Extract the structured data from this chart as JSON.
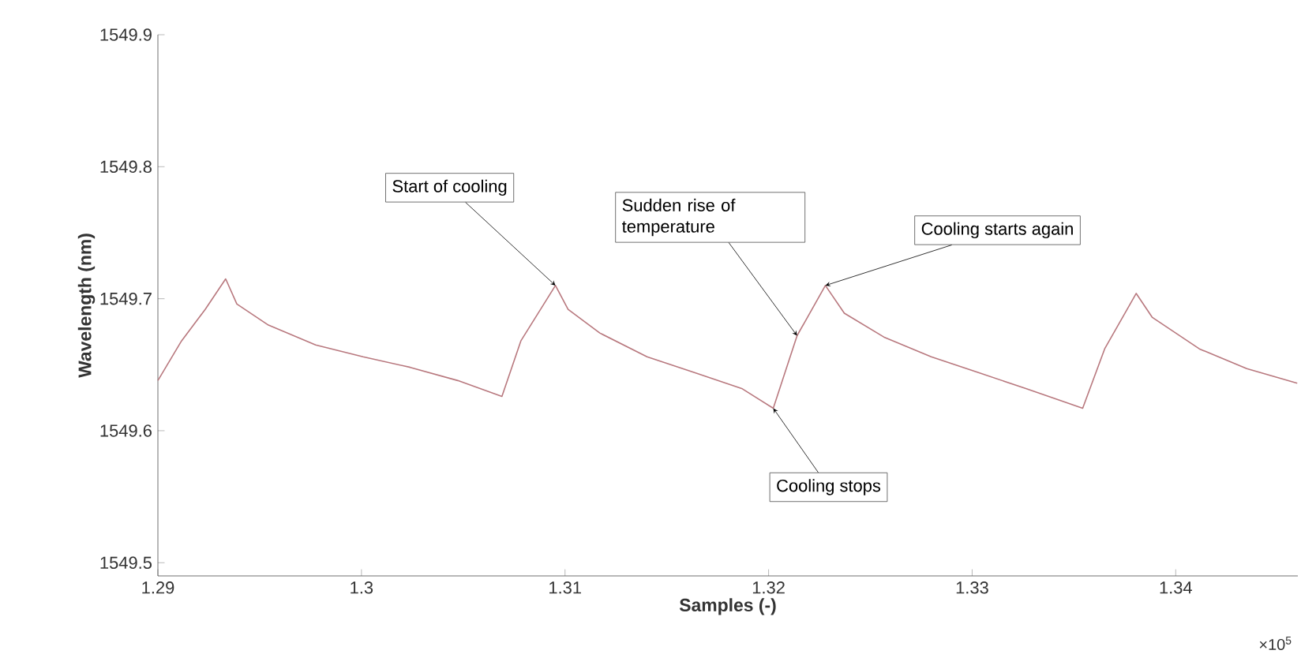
{
  "chart_data": {
    "type": "line",
    "xlabel": "Samples (-)",
    "ylabel": "Wavelength (nm)",
    "x": [
      1.29,
      1.29116,
      1.29233,
      1.29333,
      1.29388,
      1.29543,
      1.29775,
      1.30008,
      1.3024,
      1.30473,
      1.3069,
      1.30783,
      1.30953,
      1.31015,
      1.31171,
      1.31403,
      1.31636,
      1.31868,
      1.32023,
      1.3214,
      1.32279,
      1.32372,
      1.32566,
      1.32799,
      1.33031,
      1.33264,
      1.33543,
      1.33651,
      1.33806,
      1.33884,
      1.34116,
      1.34349,
      1.34597
    ],
    "series": [
      {
        "color": "#b8787e",
        "values": [
          1549.638,
          1549.668,
          1549.692,
          1549.715,
          1549.696,
          1549.68,
          1549.665,
          1549.656,
          1549.648,
          1549.638,
          1549.626,
          1549.668,
          1549.71,
          1549.692,
          1549.674,
          1549.656,
          1549.644,
          1549.632,
          1549.617,
          1549.672,
          1549.71,
          1549.689,
          1549.671,
          1549.656,
          1549.644,
          1549.632,
          1549.617,
          1549.662,
          1549.704,
          1549.686,
          1549.662,
          1549.647,
          1549.636
        ]
      }
    ],
    "xlim": [
      1.29,
      1.346
    ],
    "ylim": [
      1549.49,
      1549.9
    ],
    "xticks": [
      1.29,
      1.3,
      1.31,
      1.32,
      1.33,
      1.34
    ],
    "yticks": [
      1549.5,
      1549.6,
      1549.7,
      1549.8,
      1549.9
    ],
    "annotations": [
      {
        "text": "Start of cooling",
        "x": 1.30953,
        "y": 1549.71
      },
      {
        "text": "Sudden rise of temperature",
        "x": 1.3214,
        "y": 1549.672
      },
      {
        "text": "Cooling starts again",
        "x": 1.32279,
        "y": 1549.71
      },
      {
        "text": "Cooling stops",
        "x": 1.32023,
        "y": 1549.617
      },
      "×10$^{5}$"
    ]
  }
}
